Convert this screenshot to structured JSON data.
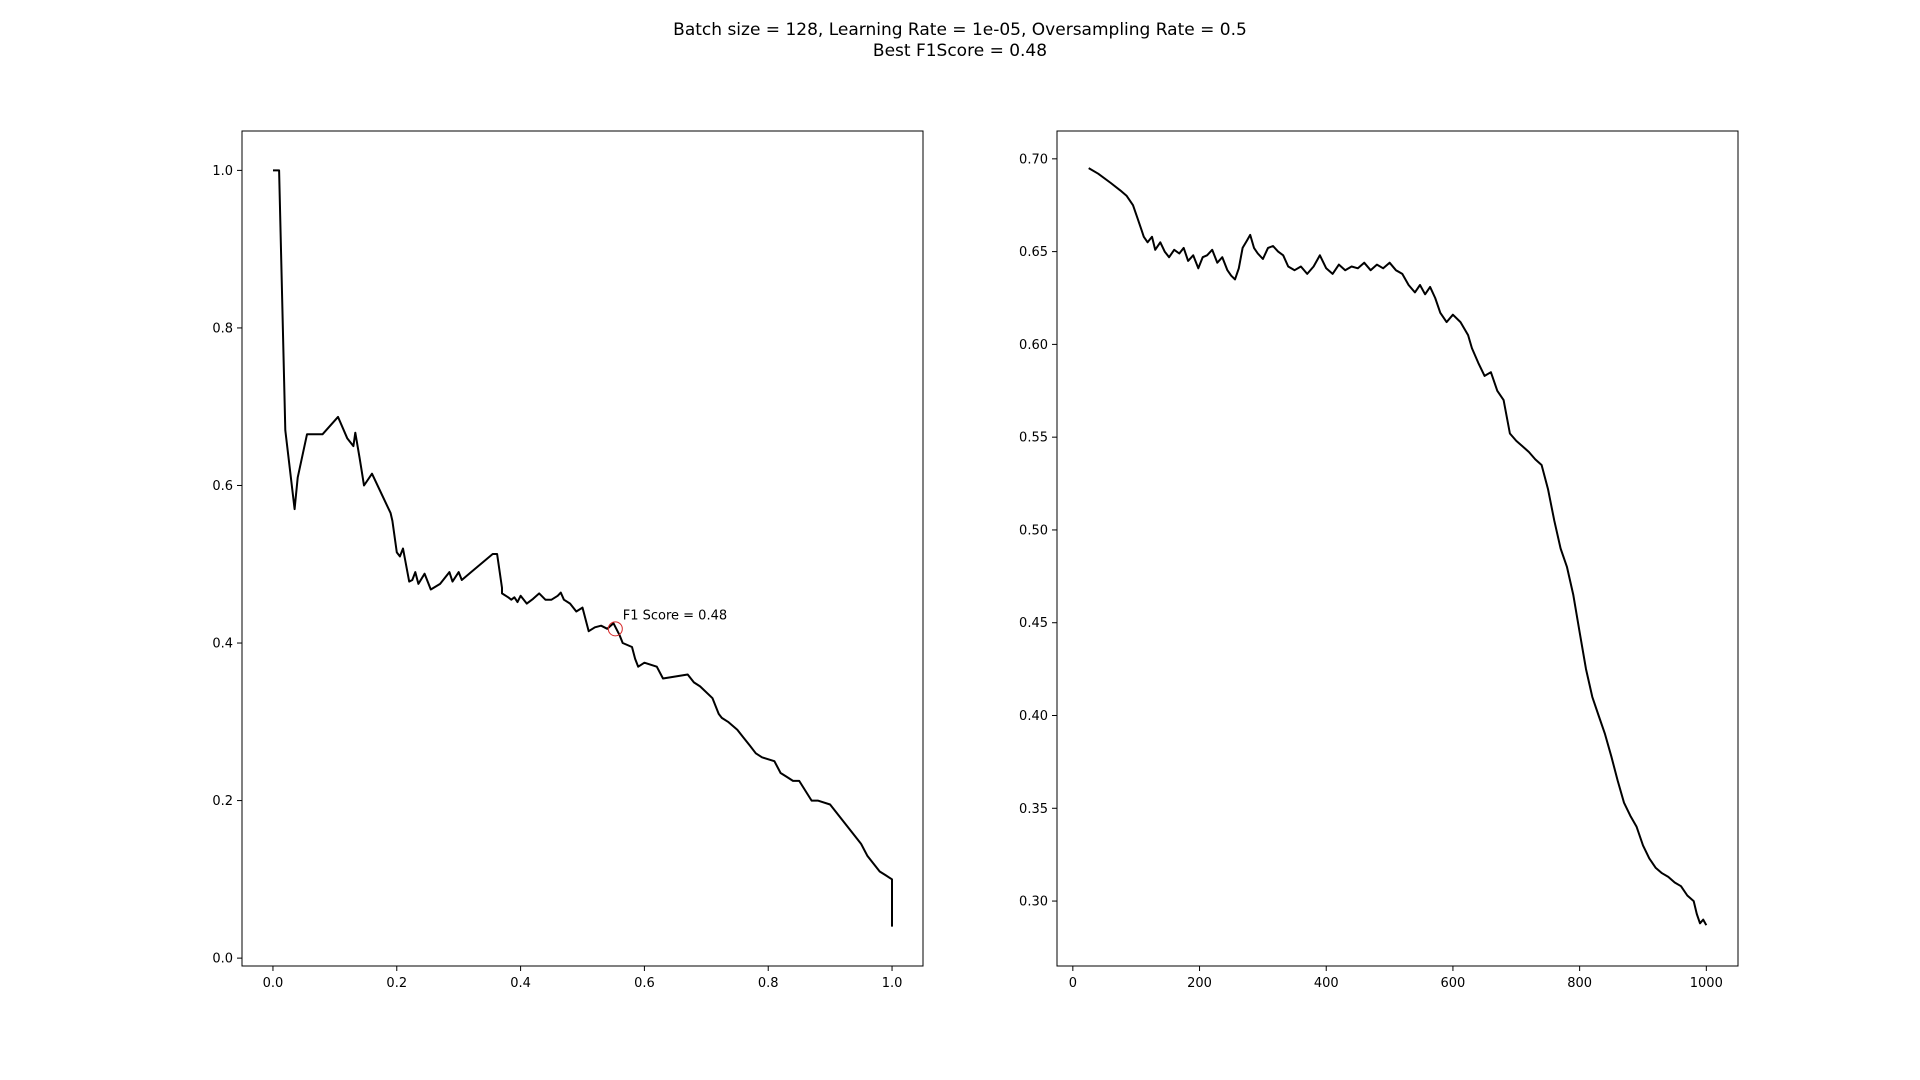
{
  "figure": {
    "title_line1": "Batch size = 128, Learning Rate = 1e-05, Oversampling Rate = 0.5",
    "title_line2": "Best F1Score = 0.48"
  },
  "chart_data": [
    {
      "type": "line",
      "xlim": [
        -0.05,
        1.05
      ],
      "ylim": [
        -0.01,
        1.05
      ],
      "xticks": [
        0.0,
        0.2,
        0.4,
        0.6,
        0.8,
        1.0
      ],
      "yticks": [
        0.0,
        0.2,
        0.4,
        0.6,
        0.8,
        1.0
      ],
      "xtick_labels": [
        "0.0",
        "0.2",
        "0.4",
        "0.6",
        "0.8",
        "1.0"
      ],
      "ytick_labels": [
        "0.0",
        "0.2",
        "0.4",
        "0.6",
        "0.8",
        "1.0"
      ],
      "line_color": "#000000",
      "grid": false,
      "series": [
        {
          "x": [
            0.0,
            0.01,
            0.02,
            0.035,
            0.04,
            0.055,
            0.07,
            0.08,
            0.105,
            0.12,
            0.13,
            0.133,
            0.14,
            0.143,
            0.147,
            0.16,
            0.19,
            0.193,
            0.2,
            0.205,
            0.21,
            0.22,
            0.225,
            0.23,
            0.235,
            0.245,
            0.255,
            0.27,
            0.285,
            0.29,
            0.3,
            0.305,
            0.32,
            0.355,
            0.362,
            0.37,
            0.37,
            0.38,
            0.385,
            0.39,
            0.395,
            0.4,
            0.41,
            0.42,
            0.43,
            0.44,
            0.45,
            0.46,
            0.465,
            0.47,
            0.48,
            0.49,
            0.5,
            0.51,
            0.52,
            0.53,
            0.54,
            0.55,
            0.56,
            0.565,
            0.58,
            0.585,
            0.59,
            0.6,
            0.62,
            0.63,
            0.67,
            0.68,
            0.69,
            0.71,
            0.72,
            0.725,
            0.735,
            0.75,
            0.76,
            0.77,
            0.78,
            0.79,
            0.81,
            0.82,
            0.83,
            0.84,
            0.85,
            0.87,
            0.88,
            0.9,
            0.91,
            0.92,
            0.93,
            0.94,
            0.95,
            0.96,
            0.97,
            0.98,
            0.99,
            1.0,
            1.0
          ],
          "y": [
            1.0,
            1.0,
            0.67,
            0.57,
            0.61,
            0.665,
            0.665,
            0.665,
            0.687,
            0.66,
            0.65,
            0.667,
            0.635,
            0.62,
            0.6,
            0.615,
            0.565,
            0.555,
            0.515,
            0.51,
            0.52,
            0.478,
            0.48,
            0.49,
            0.475,
            0.488,
            0.468,
            0.475,
            0.49,
            0.478,
            0.49,
            0.48,
            0.49,
            0.513,
            0.513,
            0.47,
            0.463,
            0.458,
            0.455,
            0.458,
            0.452,
            0.46,
            0.45,
            0.456,
            0.463,
            0.455,
            0.455,
            0.46,
            0.464,
            0.455,
            0.45,
            0.44,
            0.445,
            0.415,
            0.42,
            0.422,
            0.418,
            0.425,
            0.41,
            0.4,
            0.395,
            0.38,
            0.37,
            0.375,
            0.37,
            0.355,
            0.36,
            0.35,
            0.345,
            0.33,
            0.31,
            0.305,
            0.3,
            0.29,
            0.28,
            0.27,
            0.26,
            0.255,
            0.25,
            0.235,
            0.23,
            0.225,
            0.225,
            0.2,
            0.2,
            0.195,
            0.185,
            0.175,
            0.165,
            0.155,
            0.145,
            0.13,
            0.12,
            0.11,
            0.105,
            0.1,
            0.04
          ]
        }
      ],
      "highlight": {
        "x": 0.553,
        "y": 0.418,
        "color": "#d62728"
      },
      "annotation": {
        "text": "F1 Score = 0.48",
        "x": 0.565,
        "y": 0.43
      }
    },
    {
      "type": "line",
      "xlim": [
        -25,
        1050
      ],
      "ylim": [
        0.265,
        0.715
      ],
      "xticks": [
        0,
        200,
        400,
        600,
        800,
        1000
      ],
      "yticks": [
        0.3,
        0.35,
        0.4,
        0.45,
        0.5,
        0.55,
        0.6,
        0.65,
        0.7
      ],
      "xtick_labels": [
        "0",
        "200",
        "400",
        "600",
        "800",
        "1000"
      ],
      "ytick_labels": [
        "0.30",
        "0.35",
        "0.40",
        "0.45",
        "0.50",
        "0.55",
        "0.60",
        "0.65",
        "0.70"
      ],
      "line_color": "#000000",
      "grid": false,
      "series": [
        {
          "x": [
            25,
            40,
            60,
            75,
            85,
            95,
            102,
            108,
            112,
            118,
            125,
            130,
            138,
            145,
            152,
            160,
            168,
            175,
            182,
            190,
            198,
            205,
            212,
            220,
            228,
            236,
            244,
            250,
            256,
            262,
            268,
            275,
            280,
            286,
            292,
            300,
            308,
            316,
            324,
            332,
            340,
            350,
            360,
            370,
            380,
            390,
            400,
            410,
            420,
            430,
            440,
            450,
            460,
            470,
            480,
            490,
            500,
            510,
            520,
            530,
            540,
            548,
            556,
            564,
            572,
            580,
            590,
            600,
            612,
            624,
            630,
            640,
            650,
            660,
            670,
            680,
            690,
            700,
            710,
            720,
            730,
            740,
            750,
            760,
            770,
            780,
            790,
            800,
            810,
            820,
            830,
            840,
            850,
            860,
            870,
            880,
            890,
            900,
            910,
            920,
            930,
            940,
            950,
            960,
            970,
            980,
            985,
            990,
            995,
            1000
          ],
          "y": [
            0.695,
            0.692,
            0.687,
            0.683,
            0.68,
            0.675,
            0.668,
            0.662,
            0.658,
            0.655,
            0.658,
            0.651,
            0.655,
            0.65,
            0.647,
            0.651,
            0.649,
            0.652,
            0.645,
            0.648,
            0.641,
            0.647,
            0.648,
            0.651,
            0.644,
            0.647,
            0.64,
            0.637,
            0.635,
            0.641,
            0.652,
            0.656,
            0.659,
            0.652,
            0.649,
            0.646,
            0.652,
            0.653,
            0.65,
            0.648,
            0.642,
            0.64,
            0.642,
            0.638,
            0.642,
            0.648,
            0.641,
            0.638,
            0.643,
            0.64,
            0.642,
            0.641,
            0.644,
            0.64,
            0.643,
            0.641,
            0.644,
            0.64,
            0.638,
            0.632,
            0.628,
            0.632,
            0.627,
            0.631,
            0.625,
            0.617,
            0.612,
            0.616,
            0.612,
            0.605,
            0.598,
            0.59,
            0.583,
            0.585,
            0.575,
            0.57,
            0.552,
            0.548,
            0.545,
            0.542,
            0.538,
            0.535,
            0.522,
            0.505,
            0.49,
            0.48,
            0.465,
            0.445,
            0.425,
            0.41,
            0.4,
            0.39,
            0.378,
            0.365,
            0.353,
            0.346,
            0.34,
            0.33,
            0.323,
            0.318,
            0.315,
            0.313,
            0.31,
            0.308,
            0.303,
            0.3,
            0.293,
            0.288,
            0.29,
            0.287
          ]
        }
      ]
    }
  ]
}
